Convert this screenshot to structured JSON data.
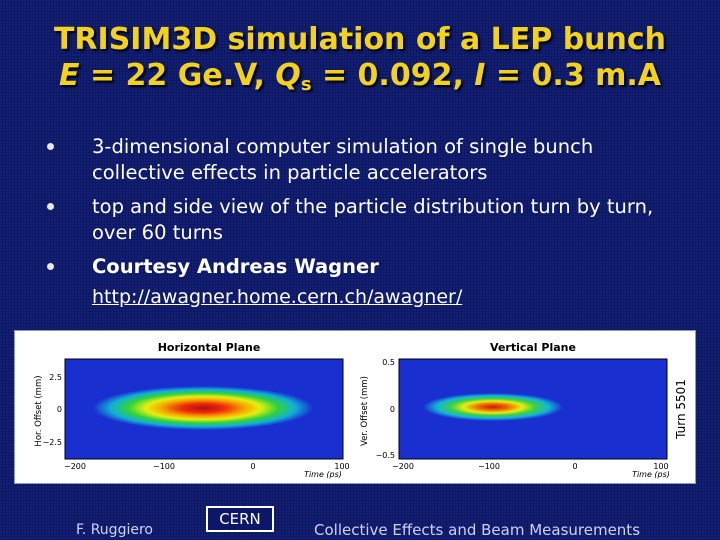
{
  "slide": {
    "title_line1": "TRISIM3D simulation of a LEP bunch",
    "title_line2_prefix": "E",
    "title_line2_a": " = 22 Ge.V, ",
    "title_line2_q": "Q",
    "title_line2_sub": "s",
    "title_line2_b": " = 0.092, ",
    "title_line2_i": "I",
    "title_line2_c": " = 0.3 m.A",
    "bullets": [
      "3-dimensional computer simulation of single bunch collective effects in particle accelerators",
      "top and side view of the particle distribution turn by turn, over 60 turns",
      "Courtesy Andreas Wagner"
    ],
    "link_text": "http://awagner.home.cern.ch/awagner/"
  },
  "figure": {
    "left_title": "Horizontal Plane",
    "right_title": "Vertical Plane",
    "left_ylabel": "Hor. Offset (mm)",
    "right_ylabel": "Ver. Offset (mm)",
    "left_xlabel": "Time (ps)",
    "right_xlabel": "Time (ps)",
    "left_yticks": [
      "2.5",
      "0",
      "−2.5"
    ],
    "right_yticks": [
      "0.5",
      "0",
      "−0.5"
    ],
    "xticks": [
      "−200",
      "−100",
      "0",
      "100"
    ],
    "turn_label": "Turn 5501"
  },
  "footer": {
    "author": "F. Ruggiero",
    "badge": "CERN",
    "text": "Collective Effects and Beam Measurements"
  },
  "colors": {
    "background": "#0c1768",
    "title": "#f2d21c",
    "plot_field": "#1a2fd0"
  }
}
